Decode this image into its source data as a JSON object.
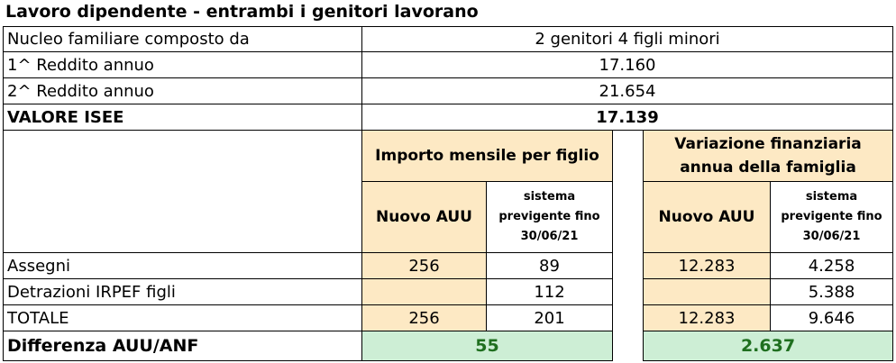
{
  "title": "Lavoro dipendente - entrambi i genitori lavorano",
  "info": [
    {
      "label": "Nucleo familiare composto da",
      "value": "2 genitori 4 figli minori"
    },
    {
      "label": "1^ Reddito annuo",
      "value": "17.160"
    },
    {
      "label": "2^ Reddito annuo",
      "value": "21.654"
    },
    {
      "label": "VALORE ISEE",
      "value": "17.139"
    }
  ],
  "headers": {
    "monthly_group": "Importo mensile per figlio",
    "annual_group": "Variazione finanziaria annua della famiglia",
    "new_auu": "Nuovo AUU",
    "previous_system": "sistema previgente fino 30/06/21"
  },
  "rows": [
    {
      "label": "Assegni",
      "m_new": "256",
      "m_old": "89",
      "a_new": "12.283",
      "a_old": "4.258"
    },
    {
      "label": "Detrazioni IRPEF figli",
      "m_new": "",
      "m_old": "112",
      "a_new": "",
      "a_old": "5.388"
    },
    {
      "label": "TOTALE",
      "m_new": "256",
      "m_old": "201",
      "a_new": "12.283",
      "a_old": "9.646"
    }
  ],
  "difference": {
    "label": "Differenza AUU/ANF",
    "monthly": "55",
    "annual": "2.637"
  }
}
